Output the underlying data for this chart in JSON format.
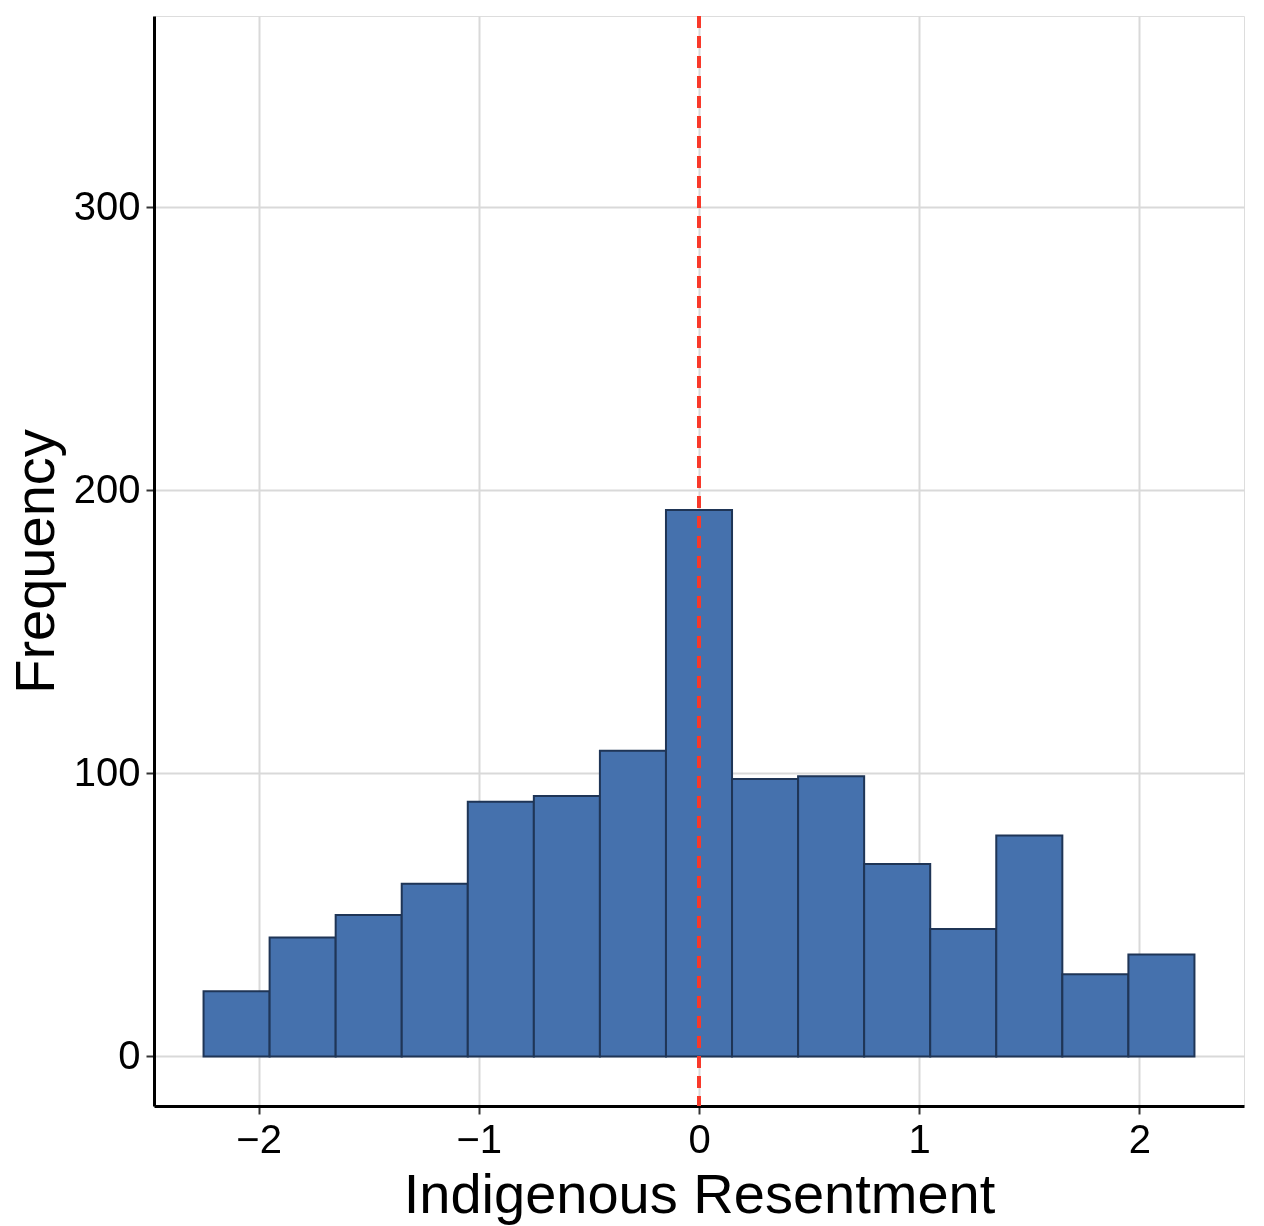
{
  "chart_data": {
    "type": "histogram",
    "xlabel": "Indigenous Resentment",
    "ylabel": "Frequency",
    "bins": [
      -2.25,
      -1.95,
      -1.65,
      -1.35,
      -1.05,
      -0.75,
      -0.45,
      -0.15,
      0.15,
      0.45,
      0.75,
      1.05,
      1.35,
      1.65,
      1.95,
      2.25
    ],
    "values": [
      23,
      42,
      50,
      61,
      90,
      92,
      108,
      193,
      98,
      99,
      68,
      45,
      78,
      29,
      36
    ],
    "color": "#4571ad",
    "xlim": [
      -2.475,
      2.475
    ],
    "xticks": [
      -2,
      -1,
      0,
      1,
      2
    ],
    "ylim": [
      -17.5,
      367.5
    ],
    "yticks": [
      0,
      100,
      200,
      300
    ],
    "grid": true,
    "ref_lines": [
      {
        "axis": "x",
        "value": 0,
        "color": "#f8392a",
        "line_style": "dashed"
      }
    ]
  }
}
